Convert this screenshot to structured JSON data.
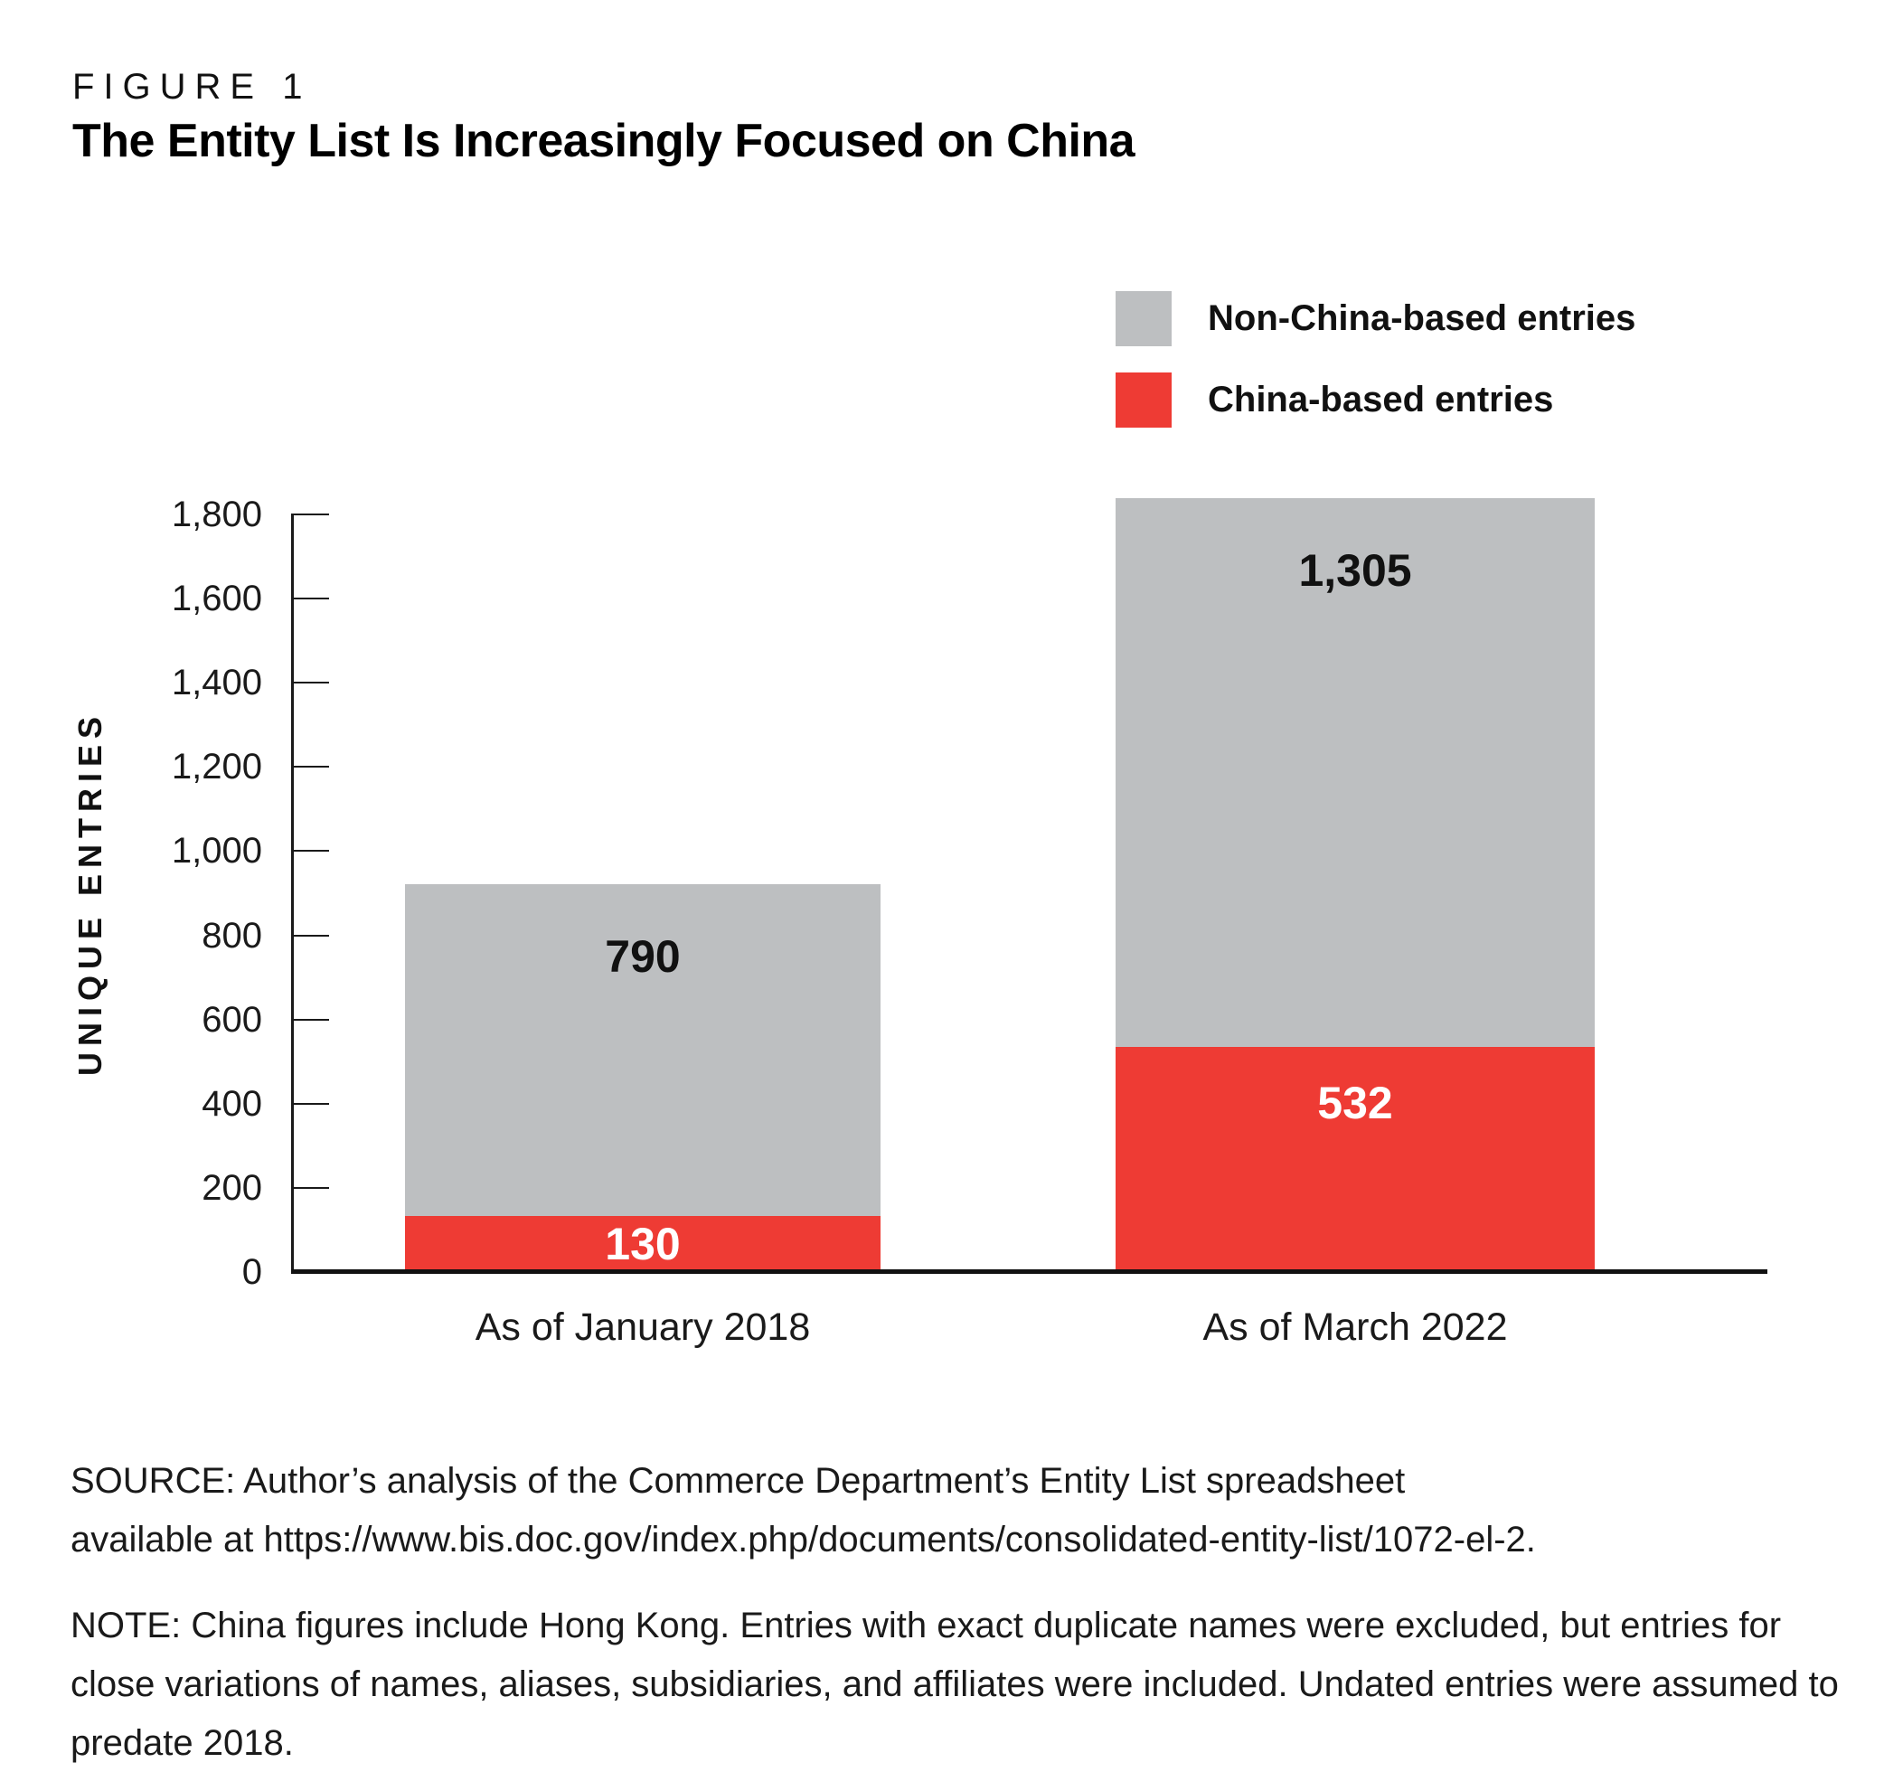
{
  "figure": {
    "kicker": "FIGURE 1",
    "title": "The Entity List Is Increasingly Focused on China"
  },
  "legend": [
    {
      "label": "Non-China-based entries",
      "color": "#bdbfc1"
    },
    {
      "label": "China-based entries",
      "color": "#ee3b34"
    }
  ],
  "chart_data": {
    "type": "bar",
    "stacked": true,
    "categories": [
      "As of January 2018",
      "As of March 2022"
    ],
    "series": [
      {
        "name": "China-based entries",
        "color": "#ee3b34",
        "values": [
          130,
          532
        ],
        "labels": [
          "130",
          "532"
        ],
        "label_color": "#ffffff"
      },
      {
        "name": "Non-China-based entries",
        "color": "#bdbfc1",
        "values": [
          790,
          1305
        ],
        "labels": [
          "790",
          "1,305"
        ],
        "label_color": "#111111"
      }
    ],
    "title": "The Entity List Is Increasingly Focused on China",
    "xlabel": "",
    "ylabel": "UNIQUE ENTRIES",
    "ylim": [
      0,
      1800
    ],
    "ytick_step": 200,
    "yticks": [
      "0",
      "200",
      "400",
      "600",
      "800",
      "1,000",
      "1,200",
      "1,400",
      "1,600",
      "1,800"
    ],
    "grid": false,
    "legend_position": "top-right"
  },
  "source": "SOURCE: Author’s analysis of the Commerce Department’s Entity List spreadsheet available at https://www.bis.doc.gov/index.php/documents/consolidated-entity-list/1072-el-2.",
  "note": "NOTE: China figures include Hong Kong. Entries with exact duplicate names were excluded, but entries for close variations of names, aliases, subsidiaries, and affiliates were included. Undated entries were assumed to predate 2018."
}
